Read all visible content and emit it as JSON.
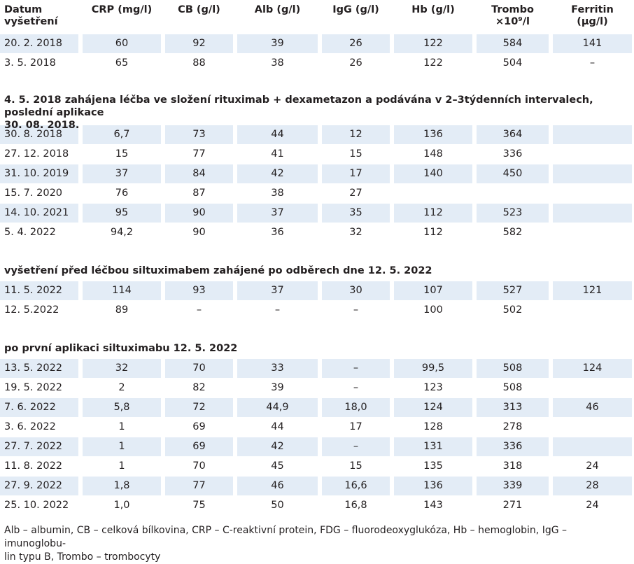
{
  "headers": [
    {
      "l1": "Datum",
      "l2": "vyšetření"
    },
    {
      "l1": "CRP (mg/l)",
      "l2": ""
    },
    {
      "l1": "CB (g/l)",
      "l2": ""
    },
    {
      "l1": "Alb (g/l)",
      "l2": ""
    },
    {
      "l1": "IgG (g/l)",
      "l2": ""
    },
    {
      "l1": "Hb (g/l)",
      "l2": ""
    },
    {
      "l1": "Trombo",
      "l2": "×10⁹/l"
    },
    {
      "l1": "Ferritin",
      "l2": "(μg/l)"
    }
  ],
  "rows": [
    [
      "20. 2. 2018",
      "60",
      "92",
      "39",
      "26",
      "122",
      "584",
      "141"
    ],
    [
      "3. 5. 2018",
      "65",
      "88",
      "38",
      "26",
      "122",
      "504",
      "–"
    ],
    [
      "30. 8. 2018",
      "6,7",
      "73",
      "44",
      "12",
      "136",
      "364",
      ""
    ],
    [
      "27. 12. 2018",
      "15",
      "77",
      "41",
      "15",
      "148",
      "336",
      ""
    ],
    [
      "31. 10. 2019",
      "37",
      "84",
      "42",
      "17",
      "140",
      "450",
      ""
    ],
    [
      "15. 7. 2020",
      "76",
      "87",
      "38",
      "27",
      "",
      "",
      ""
    ],
    [
      "14. 10. 2021",
      "95",
      "90",
      "37",
      "35",
      "112",
      "523",
      ""
    ],
    [
      "5. 4. 2022",
      "94,2",
      "90",
      "36",
      "32",
      "112",
      "582",
      ""
    ],
    [
      "11. 5. 2022",
      "114",
      "93",
      "37",
      "30",
      "107",
      "527",
      "121"
    ],
    [
      "12. 5.2022",
      "89",
      "–",
      "–",
      "–",
      "100",
      "502",
      ""
    ],
    [
      "13. 5. 2022",
      "32",
      "70",
      "33",
      "–",
      "99,5",
      "508",
      "124"
    ],
    [
      "19. 5. 2022",
      "2",
      "82",
      "39",
      "–",
      "123",
      "508",
      ""
    ],
    [
      "7. 6. 2022",
      "5,8",
      "72",
      "44,9",
      "18,0",
      "124",
      "313",
      "46"
    ],
    [
      "3. 6. 2022",
      "1",
      "69",
      "44",
      "17",
      "128",
      "278",
      ""
    ],
    [
      "27. 7. 2022",
      "1",
      "69",
      "42",
      "–",
      "131",
      "336",
      ""
    ],
    [
      "11. 8. 2022",
      "1",
      "70",
      "45",
      "15",
      "135",
      "318",
      "24"
    ],
    [
      "27. 9. 2022",
      "1,8",
      "77",
      "46",
      "16,6",
      "136",
      "339",
      "28"
    ],
    [
      "25. 10. 2022",
      "1,0",
      "75",
      "50",
      "16,8",
      "143",
      "271",
      "24"
    ]
  ],
  "sections": [
    {
      "line1": "4. 5. 2018 zahájena léčba ve složení rituximab + dexametazon a podávána v 2–3týdenních intervalech, poslední aplikace",
      "line2": "30. 08. 2018."
    },
    {
      "line1": "vyšetření před léčbou siltuximabem zahájené po odběrech dne 12. 5. 2022",
      "line2": ""
    },
    {
      "line1": "po první aplikaci siltuximabu 12. 5. 2022",
      "line2": ""
    }
  ],
  "footnote": {
    "line1": "Alb – albumin, CB – celková bílkovina, CRP – C-reaktivní protein, FDG – fluorodeoxyglukóza, Hb – hemoglobin, IgG – imunoglobu-",
    "line2": "lin typu B, Trombo – trombocyty"
  }
}
